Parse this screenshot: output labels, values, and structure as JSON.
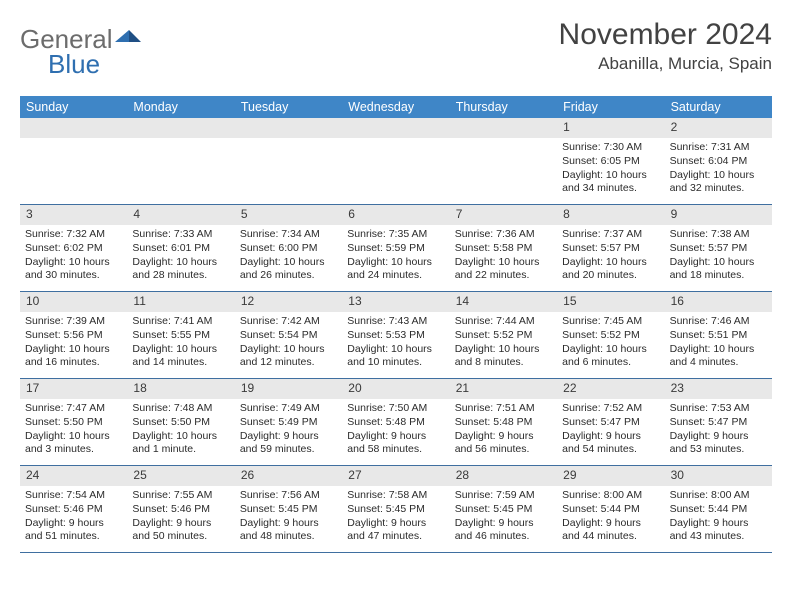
{
  "colors": {
    "header_bg": "#3f86c7",
    "header_text": "#ffffff",
    "grid_border": "#3f6fa0",
    "daynum_bg": "#e8e8e8",
    "body_text": "#2b2b2b",
    "title_text": "#424242",
    "logo_gray": "#6c6c6c",
    "logo_blue": "#2f6fb0",
    "page_bg": "#ffffff"
  },
  "logo": {
    "part1": "General",
    "part2": "Blue"
  },
  "title": "November 2024",
  "location": "Abanilla, Murcia, Spain",
  "day_names": [
    "Sunday",
    "Monday",
    "Tuesday",
    "Wednesday",
    "Thursday",
    "Friday",
    "Saturday"
  ],
  "weeks": [
    [
      null,
      null,
      null,
      null,
      null,
      {
        "n": "1",
        "sr": "7:30 AM",
        "ss": "6:05 PM",
        "dl": "10 hours and 34 minutes."
      },
      {
        "n": "2",
        "sr": "7:31 AM",
        "ss": "6:04 PM",
        "dl": "10 hours and 32 minutes."
      }
    ],
    [
      {
        "n": "3",
        "sr": "7:32 AM",
        "ss": "6:02 PM",
        "dl": "10 hours and 30 minutes."
      },
      {
        "n": "4",
        "sr": "7:33 AM",
        "ss": "6:01 PM",
        "dl": "10 hours and 28 minutes."
      },
      {
        "n": "5",
        "sr": "7:34 AM",
        "ss": "6:00 PM",
        "dl": "10 hours and 26 minutes."
      },
      {
        "n": "6",
        "sr": "7:35 AM",
        "ss": "5:59 PM",
        "dl": "10 hours and 24 minutes."
      },
      {
        "n": "7",
        "sr": "7:36 AM",
        "ss": "5:58 PM",
        "dl": "10 hours and 22 minutes."
      },
      {
        "n": "8",
        "sr": "7:37 AM",
        "ss": "5:57 PM",
        "dl": "10 hours and 20 minutes."
      },
      {
        "n": "9",
        "sr": "7:38 AM",
        "ss": "5:57 PM",
        "dl": "10 hours and 18 minutes."
      }
    ],
    [
      {
        "n": "10",
        "sr": "7:39 AM",
        "ss": "5:56 PM",
        "dl": "10 hours and 16 minutes."
      },
      {
        "n": "11",
        "sr": "7:41 AM",
        "ss": "5:55 PM",
        "dl": "10 hours and 14 minutes."
      },
      {
        "n": "12",
        "sr": "7:42 AM",
        "ss": "5:54 PM",
        "dl": "10 hours and 12 minutes."
      },
      {
        "n": "13",
        "sr": "7:43 AM",
        "ss": "5:53 PM",
        "dl": "10 hours and 10 minutes."
      },
      {
        "n": "14",
        "sr": "7:44 AM",
        "ss": "5:52 PM",
        "dl": "10 hours and 8 minutes."
      },
      {
        "n": "15",
        "sr": "7:45 AM",
        "ss": "5:52 PM",
        "dl": "10 hours and 6 minutes."
      },
      {
        "n": "16",
        "sr": "7:46 AM",
        "ss": "5:51 PM",
        "dl": "10 hours and 4 minutes."
      }
    ],
    [
      {
        "n": "17",
        "sr": "7:47 AM",
        "ss": "5:50 PM",
        "dl": "10 hours and 3 minutes."
      },
      {
        "n": "18",
        "sr": "7:48 AM",
        "ss": "5:50 PM",
        "dl": "10 hours and 1 minute."
      },
      {
        "n": "19",
        "sr": "7:49 AM",
        "ss": "5:49 PM",
        "dl": "9 hours and 59 minutes."
      },
      {
        "n": "20",
        "sr": "7:50 AM",
        "ss": "5:48 PM",
        "dl": "9 hours and 58 minutes."
      },
      {
        "n": "21",
        "sr": "7:51 AM",
        "ss": "5:48 PM",
        "dl": "9 hours and 56 minutes."
      },
      {
        "n": "22",
        "sr": "7:52 AM",
        "ss": "5:47 PM",
        "dl": "9 hours and 54 minutes."
      },
      {
        "n": "23",
        "sr": "7:53 AM",
        "ss": "5:47 PM",
        "dl": "9 hours and 53 minutes."
      }
    ],
    [
      {
        "n": "24",
        "sr": "7:54 AM",
        "ss": "5:46 PM",
        "dl": "9 hours and 51 minutes."
      },
      {
        "n": "25",
        "sr": "7:55 AM",
        "ss": "5:46 PM",
        "dl": "9 hours and 50 minutes."
      },
      {
        "n": "26",
        "sr": "7:56 AM",
        "ss": "5:45 PM",
        "dl": "9 hours and 48 minutes."
      },
      {
        "n": "27",
        "sr": "7:58 AM",
        "ss": "5:45 PM",
        "dl": "9 hours and 47 minutes."
      },
      {
        "n": "28",
        "sr": "7:59 AM",
        "ss": "5:45 PM",
        "dl": "9 hours and 46 minutes."
      },
      {
        "n": "29",
        "sr": "8:00 AM",
        "ss": "5:44 PM",
        "dl": "9 hours and 44 minutes."
      },
      {
        "n": "30",
        "sr": "8:00 AM",
        "ss": "5:44 PM",
        "dl": "9 hours and 43 minutes."
      }
    ]
  ],
  "labels": {
    "sunrise": "Sunrise:",
    "sunset": "Sunset:",
    "daylight": "Daylight:"
  }
}
